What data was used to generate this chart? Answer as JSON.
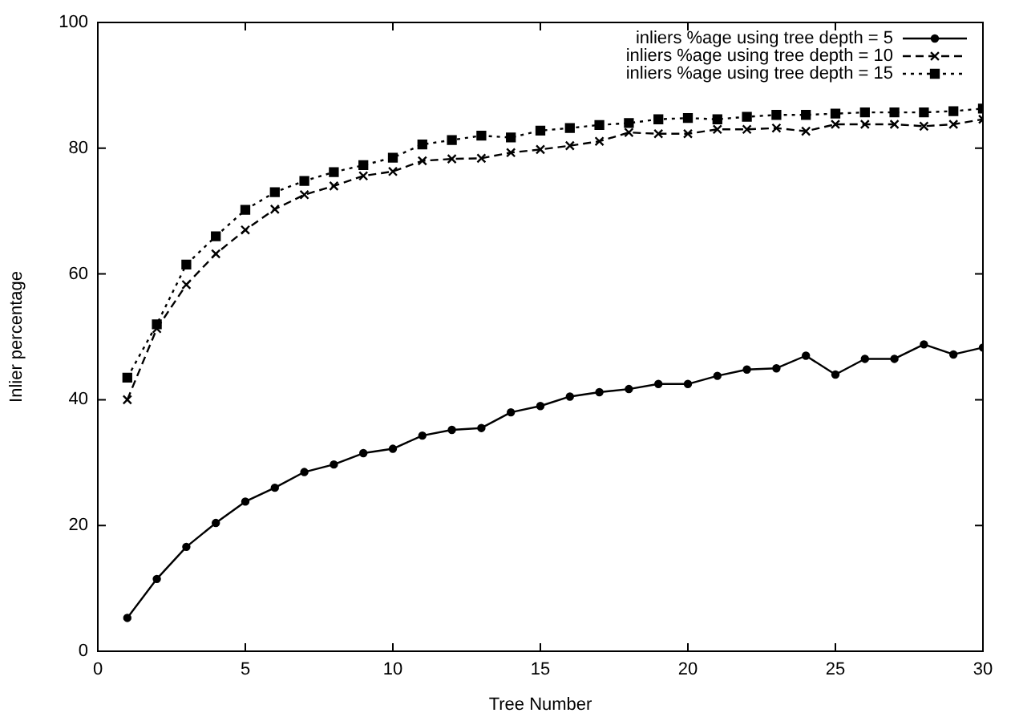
{
  "chart_data": {
    "type": "line",
    "xlabel": "Tree Number",
    "ylabel": "Inlier percentage",
    "x": [
      1,
      2,
      3,
      4,
      5,
      6,
      7,
      8,
      9,
      10,
      11,
      12,
      13,
      14,
      15,
      16,
      17,
      18,
      19,
      20,
      21,
      22,
      23,
      24,
      25,
      26,
      27,
      28,
      29,
      30
    ],
    "xlim": [
      0,
      30
    ],
    "xticks": [
      0,
      5,
      10,
      15,
      20,
      25,
      30
    ],
    "ylim": [
      0,
      100
    ],
    "yticks": [
      0,
      20,
      40,
      60,
      80,
      100
    ],
    "grid": false,
    "legend": "top right",
    "series": [
      {
        "name": "inliers %age using tree depth = 5",
        "color": "#000000",
        "marker": "circle",
        "line_style": "solid",
        "values": [
          5.3,
          11.5,
          16.6,
          20.4,
          23.8,
          26,
          28.5,
          29.7,
          31.5,
          32.2,
          34.3,
          35.2,
          35.5,
          38,
          39,
          40.5,
          41.2,
          41.7,
          42.5,
          42.5,
          43.8,
          44.8,
          45,
          47,
          44,
          46.5,
          46.5,
          48.8,
          47.2,
          48.3
        ]
      },
      {
        "name": "inliers %age using tree depth = 10",
        "color": "#000000",
        "marker": "cross",
        "line_style": "dashed",
        "values": [
          40,
          51.3,
          58.3,
          63.2,
          67,
          70.3,
          72.6,
          74,
          75.6,
          76.3,
          78,
          78.3,
          78.4,
          79.3,
          79.8,
          80.4,
          81.1,
          82.5,
          82.3,
          82.3,
          83,
          83,
          83.2,
          82.7,
          83.8,
          83.8,
          83.8,
          83.5,
          83.8,
          84.6
        ]
      },
      {
        "name": "inliers %age using tree depth = 15",
        "color": "#000000",
        "marker": "square",
        "line_style": "dotted",
        "values": [
          43.5,
          52,
          61.5,
          66,
          70.2,
          73,
          74.8,
          76.2,
          77.3,
          78.5,
          80.6,
          81.3,
          82,
          81.7,
          82.8,
          83.2,
          83.7,
          84,
          84.6,
          84.8,
          84.6,
          85,
          85.3,
          85.3,
          85.5,
          85.7,
          85.7,
          85.7,
          85.9,
          86.3
        ]
      }
    ]
  }
}
